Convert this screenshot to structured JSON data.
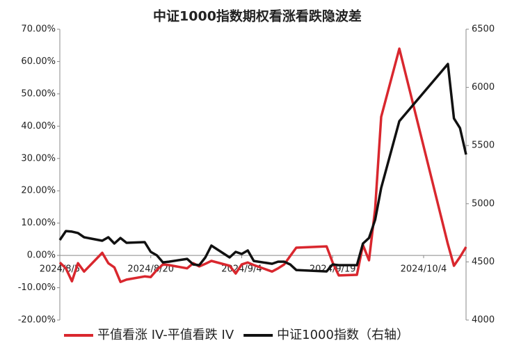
{
  "chart_data": {
    "type": "line",
    "title": "中证1000指数期权看涨看跌隐波差",
    "x": [
      "2024/8/5",
      "2024/8/6",
      "2024/8/7",
      "2024/8/8",
      "2024/8/9",
      "2024/8/12",
      "2024/8/13",
      "2024/8/14",
      "2024/8/15",
      "2024/8/16",
      "2024/8/19",
      "2024/8/20",
      "2024/8/21",
      "2024/8/22",
      "2024/8/23",
      "2024/8/26",
      "2024/8/27",
      "2024/8/28",
      "2024/8/29",
      "2024/8/30",
      "2024/9/2",
      "2024/9/3",
      "2024/9/4",
      "2024/9/5",
      "2024/9/6",
      "2024/9/9",
      "2024/9/10",
      "2024/9/11",
      "2024/9/12",
      "2024/9/13",
      "2024/9/18",
      "2024/9/19",
      "2024/9/20",
      "2024/9/23",
      "2024/9/24",
      "2024/9/25",
      "2024/9/26",
      "2024/9/27",
      "2024/9/30",
      "2024/10/8",
      "2024/10/9",
      "2024/10/10",
      "2024/10/11"
    ],
    "series": [
      {
        "name": "平值看涨 IV-平值看跌 IV",
        "color": "#d9272e",
        "axis": "y",
        "values": [
          -2.2,
          -4,
          -8,
          -2.4,
          -5,
          0.8,
          -2.4,
          -3.7,
          -8.2,
          -7.5,
          -6.5,
          -6.7,
          -4.5,
          -2.8,
          -3,
          -4,
          -2.4,
          -3.4,
          -2.6,
          -1.7,
          -3.2,
          -5.6,
          -2.8,
          -2.2,
          -3,
          -5,
          -4,
          -2.8,
          -0.2,
          2.4,
          2.8,
          -2.2,
          -6.2,
          -6,
          3.2,
          -1.5,
          14.4,
          42.9,
          64,
          3.5,
          -3.2,
          -0.5,
          2.6
        ]
      },
      {
        "name": "中证1000指数（右轴）",
        "color": "#111111",
        "axis": "y2",
        "values": [
          4688,
          4765,
          4760,
          4748,
          4712,
          4682,
          4712,
          4658,
          4705,
          4664,
          4670,
          4586,
          4556,
          4496,
          4502,
          4526,
          4478,
          4472,
          4538,
          4640,
          4538,
          4586,
          4568,
          4598,
          4508,
          4484,
          4502,
          4502,
          4478,
          4430,
          4418,
          4478,
          4472,
          4472,
          4658,
          4705,
          4861,
          5136,
          5710,
          6201,
          5733,
          5650,
          5423
        ]
      }
    ],
    "xlim": [
      "2024/8/5",
      "2024/10/11"
    ],
    "xticks": [
      "2024/8/5",
      "2024/8/20",
      "2024/9/4",
      "2024/9/19",
      "2024/10/4"
    ],
    "ylim": [
      -20,
      70
    ],
    "yticks": [
      {
        "value": -20,
        "label": "-20.00%"
      },
      {
        "value": -10,
        "label": "-10.00%"
      },
      {
        "value": 0,
        "label": "0.00%"
      },
      {
        "value": 10,
        "label": "10.00%"
      },
      {
        "value": 20,
        "label": "20.00%"
      },
      {
        "value": 30,
        "label": "30.00%"
      },
      {
        "value": 40,
        "label": "40.00%"
      },
      {
        "value": 50,
        "label": "50.00%"
      },
      {
        "value": 60,
        "label": "60.00%"
      },
      {
        "value": 70,
        "label": "70.00%"
      }
    ],
    "y2lim": [
      4000,
      6500
    ],
    "y2ticks": [
      4000,
      4500,
      5000,
      5500,
      6000,
      6500
    ],
    "legend": "bottom"
  }
}
